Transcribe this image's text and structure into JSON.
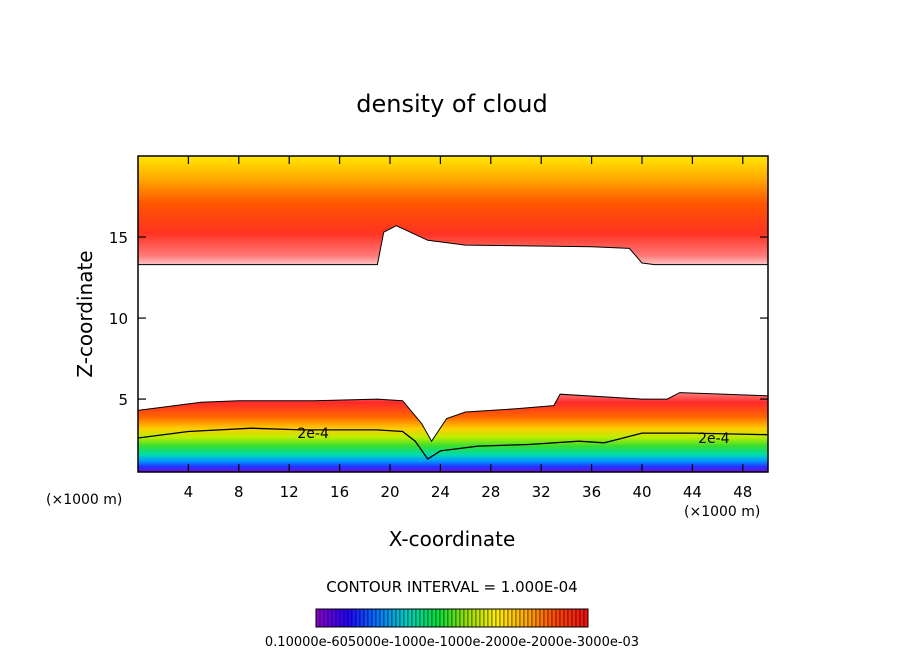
{
  "chart_data": {
    "type": "heatmap",
    "title": "density of cloud",
    "xlabel": "X-coordinate",
    "ylabel": "Z-coordinate",
    "x_unit_left": "(×1000 m)",
    "x_unit_right": "(×1000 m)",
    "xlim": [
      0,
      50
    ],
    "ylim": [
      0.5,
      20
    ],
    "x_ticks": [
      4,
      8,
      12,
      16,
      20,
      24,
      28,
      32,
      36,
      40,
      44,
      48
    ],
    "y_ticks": [
      5,
      10,
      15
    ],
    "contour_interval_text": "CONTOUR INTERVAL = 1.000E-04",
    "contour_labels": [
      {
        "x": 13.9,
        "z": 2.9,
        "text": "2e-4"
      },
      {
        "x": 45.7,
        "z": 2.6,
        "text": "2e-4"
      }
    ],
    "colorbar_text": "0.10000e-605000e-1000e-1000e-2000e-2000e-3000e-03",
    "colormap": [
      "#8800cc",
      "#2200ff",
      "#0077ff",
      "#00d0c0",
      "#00e040",
      "#99e000",
      "#ffee00",
      "#ffaa00",
      "#ff4400",
      "#ee1111"
    ],
    "upper_layer": {
      "top_z": 20,
      "lower_edge": [
        [
          0,
          13.3
        ],
        [
          19,
          13.3
        ],
        [
          19.5,
          15.3
        ],
        [
          20.5,
          15.7
        ],
        [
          23,
          14.8
        ],
        [
          26,
          14.5
        ],
        [
          36,
          14.4
        ],
        [
          39,
          14.3
        ],
        [
          40,
          13.4
        ],
        [
          41,
          13.3
        ],
        [
          50,
          13.3
        ]
      ]
    },
    "lower_layer": {
      "upper_edge": [
        [
          0,
          4.3
        ],
        [
          5,
          4.8
        ],
        [
          8,
          4.9
        ],
        [
          14,
          4.9
        ],
        [
          19,
          5
        ],
        [
          21,
          4.9
        ],
        [
          22.5,
          3.5
        ],
        [
          23.3,
          2.4
        ],
        [
          24.5,
          3.8
        ],
        [
          26,
          4.2
        ],
        [
          30,
          4.4
        ],
        [
          33,
          4.6
        ],
        [
          33.5,
          5.3
        ],
        [
          40,
          5
        ],
        [
          42,
          5
        ],
        [
          43,
          5.4
        ],
        [
          50,
          5.2
        ]
      ]
    },
    "contour_2e-4": [
      [
        0,
        2.6
      ],
      [
        4,
        3
      ],
      [
        9,
        3.2
      ],
      [
        13,
        3.1
      ],
      [
        19,
        3.1
      ],
      [
        21,
        3
      ],
      [
        22,
        2.4
      ],
      [
        23,
        1.3
      ],
      [
        24,
        1.8
      ],
      [
        27,
        2.1
      ],
      [
        31,
        2.2
      ],
      [
        35,
        2.4
      ],
      [
        37,
        2.3
      ],
      [
        38,
        2.5
      ],
      [
        40,
        2.9
      ],
      [
        44,
        2.9
      ],
      [
        50,
        2.8
      ]
    ]
  }
}
